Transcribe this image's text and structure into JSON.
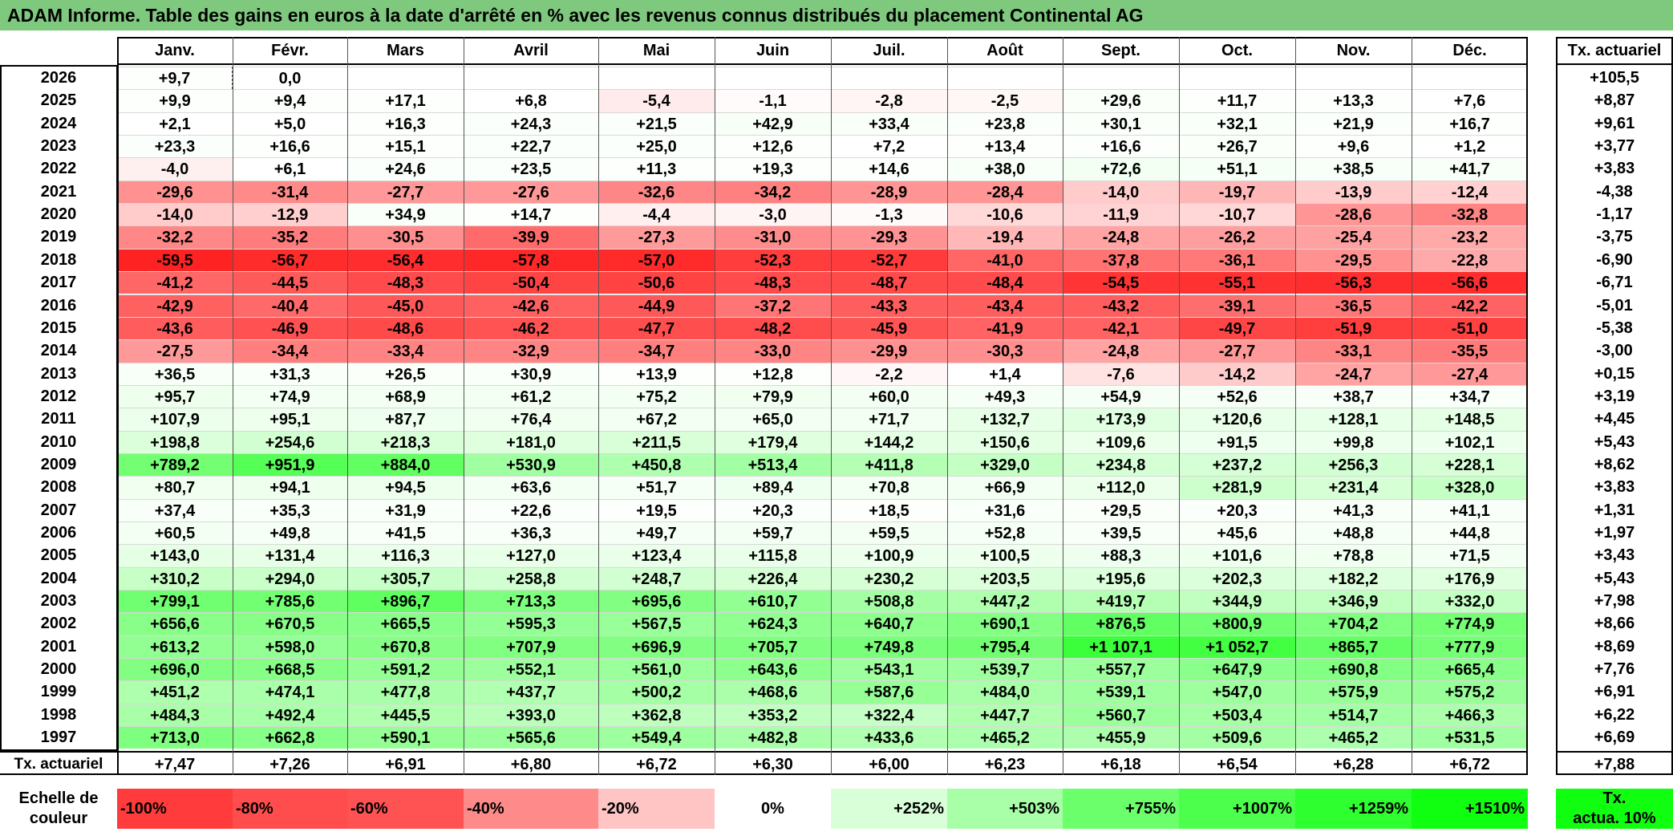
{
  "title": "ADAM Informe. Table des gains en euros à la date d'arrêté en % avec les revenus connus distribués du placement Continental AG",
  "months": [
    "Janv.",
    "Févr.",
    "Mars",
    "Avril",
    "Mai",
    "Juin",
    "Juil.",
    "Août",
    "Sept.",
    "Oct.",
    "Nov.",
    "Déc."
  ],
  "rate_header": "Tx. actuariel",
  "rows": [
    {
      "year": "2026",
      "values": [
        "+9,7",
        "0,0",
        "",
        "",
        "",
        "",
        "",
        "",
        "",
        "",
        "",
        ""
      ],
      "rate": "+105,5"
    },
    {
      "year": "2025",
      "values": [
        "+9,9",
        "+9,4",
        "+17,1",
        "+6,8",
        "-5,4",
        "-1,1",
        "-2,8",
        "-2,5",
        "+29,6",
        "+11,7",
        "+13,3",
        "+7,6"
      ],
      "rate": "+8,87"
    },
    {
      "year": "2024",
      "values": [
        "+2,1",
        "+5,0",
        "+16,3",
        "+24,3",
        "+21,5",
        "+42,9",
        "+33,4",
        "+23,8",
        "+30,1",
        "+32,1",
        "+21,9",
        "+16,7"
      ],
      "rate": "+9,61"
    },
    {
      "year": "2023",
      "values": [
        "+23,3",
        "+16,6",
        "+15,1",
        "+22,7",
        "+25,0",
        "+12,6",
        "+7,2",
        "+13,4",
        "+16,6",
        "+26,7",
        "+9,6",
        "+1,2"
      ],
      "rate": "+3,77"
    },
    {
      "year": "2022",
      "values": [
        "-4,0",
        "+6,1",
        "+24,6",
        "+23,5",
        "+11,3",
        "+19,3",
        "+14,6",
        "+38,0",
        "+72,6",
        "+51,1",
        "+38,5",
        "+41,7"
      ],
      "rate": "+3,83"
    },
    {
      "year": "2021",
      "values": [
        "-29,6",
        "-31,4",
        "-27,7",
        "-27,6",
        "-32,6",
        "-34,2",
        "-28,9",
        "-28,4",
        "-14,0",
        "-19,7",
        "-13,9",
        "-12,4"
      ],
      "rate": "-4,38"
    },
    {
      "year": "2020",
      "values": [
        "-14,0",
        "-12,9",
        "+34,9",
        "+14,7",
        "-4,4",
        "-3,0",
        "-1,3",
        "-10,6",
        "-11,9",
        "-10,7",
        "-28,6",
        "-32,8"
      ],
      "rate": "-1,17"
    },
    {
      "year": "2019",
      "values": [
        "-32,2",
        "-35,2",
        "-30,5",
        "-39,9",
        "-27,3",
        "-31,0",
        "-29,3",
        "-19,4",
        "-24,8",
        "-26,2",
        "-25,4",
        "-23,2"
      ],
      "rate": "-3,75"
    },
    {
      "year": "2018",
      "values": [
        "-59,5",
        "-56,7",
        "-56,4",
        "-57,8",
        "-57,0",
        "-52,3",
        "-52,7",
        "-41,0",
        "-37,8",
        "-36,1",
        "-29,5",
        "-22,8"
      ],
      "rate": "-6,90"
    },
    {
      "year": "2017",
      "values": [
        "-41,2",
        "-44,5",
        "-48,3",
        "-50,4",
        "-50,6",
        "-48,3",
        "-48,7",
        "-48,4",
        "-54,5",
        "-55,1",
        "-56,3",
        "-56,6"
      ],
      "rate": "-6,71"
    },
    {
      "year": "2016",
      "values": [
        "-42,9",
        "-40,4",
        "-45,0",
        "-42,6",
        "-44,9",
        "-37,2",
        "-43,3",
        "-43,4",
        "-43,2",
        "-39,1",
        "-36,5",
        "-42,2"
      ],
      "rate": "-5,01"
    },
    {
      "year": "2015",
      "values": [
        "-43,6",
        "-46,9",
        "-48,6",
        "-46,2",
        "-47,7",
        "-48,2",
        "-45,9",
        "-41,9",
        "-42,1",
        "-49,7",
        "-51,9",
        "-51,0"
      ],
      "rate": "-5,38"
    },
    {
      "year": "2014",
      "values": [
        "-27,5",
        "-34,4",
        "-33,4",
        "-32,9",
        "-34,7",
        "-33,0",
        "-29,9",
        "-30,3",
        "-24,8",
        "-27,7",
        "-33,1",
        "-35,5"
      ],
      "rate": "-3,00"
    },
    {
      "year": "2013",
      "values": [
        "+36,5",
        "+31,3",
        "+26,5",
        "+30,9",
        "+13,9",
        "+12,8",
        "-2,2",
        "+1,4",
        "-7,6",
        "-14,2",
        "-24,7",
        "-27,4"
      ],
      "rate": "+0,15"
    },
    {
      "year": "2012",
      "values": [
        "+95,7",
        "+74,9",
        "+68,9",
        "+61,2",
        "+75,2",
        "+79,9",
        "+60,0",
        "+49,3",
        "+54,9",
        "+52,6",
        "+38,7",
        "+34,7"
      ],
      "rate": "+3,19"
    },
    {
      "year": "2011",
      "values": [
        "+107,9",
        "+95,1",
        "+87,7",
        "+76,4",
        "+67,2",
        "+65,0",
        "+71,7",
        "+132,7",
        "+173,9",
        "+120,6",
        "+128,1",
        "+148,5"
      ],
      "rate": "+4,45"
    },
    {
      "year": "2010",
      "values": [
        "+198,8",
        "+254,6",
        "+218,3",
        "+181,0",
        "+211,5",
        "+179,4",
        "+144,2",
        "+150,6",
        "+109,6",
        "+91,5",
        "+99,8",
        "+102,1"
      ],
      "rate": "+5,43"
    },
    {
      "year": "2009",
      "values": [
        "+789,2",
        "+951,9",
        "+884,0",
        "+530,9",
        "+450,8",
        "+513,4",
        "+411,8",
        "+329,0",
        "+234,8",
        "+237,2",
        "+256,3",
        "+228,1"
      ],
      "rate": "+8,62"
    },
    {
      "year": "2008",
      "values": [
        "+80,7",
        "+94,1",
        "+94,5",
        "+63,6",
        "+51,7",
        "+89,4",
        "+70,8",
        "+66,9",
        "+112,0",
        "+281,9",
        "+231,4",
        "+328,0"
      ],
      "rate": "+3,83"
    },
    {
      "year": "2007",
      "values": [
        "+37,4",
        "+35,3",
        "+31,9",
        "+22,6",
        "+19,5",
        "+20,3",
        "+18,5",
        "+31,6",
        "+29,5",
        "+20,3",
        "+41,3",
        "+41,1"
      ],
      "rate": "+1,31"
    },
    {
      "year": "2006",
      "values": [
        "+60,5",
        "+49,8",
        "+41,5",
        "+36,3",
        "+49,7",
        "+59,7",
        "+59,5",
        "+52,8",
        "+39,5",
        "+45,6",
        "+48,8",
        "+44,8"
      ],
      "rate": "+1,97"
    },
    {
      "year": "2005",
      "values": [
        "+143,0",
        "+131,4",
        "+116,3",
        "+127,0",
        "+123,4",
        "+115,8",
        "+100,9",
        "+100,5",
        "+88,3",
        "+101,6",
        "+78,8",
        "+71,5"
      ],
      "rate": "+3,43"
    },
    {
      "year": "2004",
      "values": [
        "+310,2",
        "+294,0",
        "+305,7",
        "+258,8",
        "+248,7",
        "+226,4",
        "+230,2",
        "+203,5",
        "+195,6",
        "+202,3",
        "+182,2",
        "+176,9"
      ],
      "rate": "+5,43"
    },
    {
      "year": "2003",
      "values": [
        "+799,1",
        "+785,6",
        "+896,7",
        "+713,3",
        "+695,6",
        "+610,7",
        "+508,8",
        "+447,2",
        "+419,7",
        "+344,9",
        "+346,9",
        "+332,0"
      ],
      "rate": "+7,98"
    },
    {
      "year": "2002",
      "values": [
        "+656,6",
        "+670,5",
        "+665,5",
        "+595,3",
        "+567,5",
        "+624,3",
        "+640,7",
        "+690,1",
        "+876,5",
        "+800,9",
        "+704,2",
        "+774,9"
      ],
      "rate": "+8,66"
    },
    {
      "year": "2001",
      "values": [
        "+613,2",
        "+598,0",
        "+670,8",
        "+707,9",
        "+696,9",
        "+705,7",
        "+749,8",
        "+795,4",
        "+1 107,1",
        "+1 052,7",
        "+865,7",
        "+777,9"
      ],
      "rate": "+8,69"
    },
    {
      "year": "2000",
      "values": [
        "+696,0",
        "+668,5",
        "+591,2",
        "+552,1",
        "+561,0",
        "+643,6",
        "+543,1",
        "+539,7",
        "+557,7",
        "+647,9",
        "+690,8",
        "+665,4"
      ],
      "rate": "+7,76"
    },
    {
      "year": "1999",
      "values": [
        "+451,2",
        "+474,1",
        "+477,8",
        "+437,7",
        "+500,2",
        "+468,6",
        "+587,6",
        "+484,0",
        "+539,1",
        "+547,0",
        "+575,9",
        "+575,2"
      ],
      "rate": "+6,91"
    },
    {
      "year": "1998",
      "values": [
        "+484,3",
        "+492,4",
        "+445,5",
        "+393,0",
        "+362,8",
        "+353,2",
        "+322,4",
        "+447,7",
        "+560,7",
        "+503,4",
        "+514,7",
        "+466,3"
      ],
      "rate": "+6,22"
    },
    {
      "year": "1997",
      "values": [
        "+713,0",
        "+662,8",
        "+590,1",
        "+565,6",
        "+549,4",
        "+482,8",
        "+433,6",
        "+465,2",
        "+455,9",
        "+509,6",
        "+465,2",
        "+531,5"
      ],
      "rate": "+6,69"
    }
  ],
  "footer": {
    "label": "Tx. actuariel",
    "values": [
      "+7,47",
      "+7,26",
      "+6,91",
      "+6,80",
      "+6,72",
      "+6,30",
      "+6,00",
      "+6,23",
      "+6,18",
      "+6,54",
      "+6,28",
      "+6,72"
    ],
    "rate": "+7,88"
  },
  "scale": {
    "label_line1": "Echelle de",
    "label_line2": "couleur",
    "items": [
      {
        "text": "-100%",
        "color": "#ff3b3b",
        "align": "left"
      },
      {
        "text": "-80%",
        "color": "#ff4d4d",
        "align": "left"
      },
      {
        "text": "-60%",
        "color": "#ff5252",
        "align": "left"
      },
      {
        "text": "-40%",
        "color": "#ff8a8a",
        "align": "left"
      },
      {
        "text": "-20%",
        "color": "#ffc4c4",
        "align": "left"
      },
      {
        "text": "0%",
        "color": "#ffffff",
        "align": "center"
      },
      {
        "text": "+252%",
        "color": "#d9ffd9",
        "align": "right"
      },
      {
        "text": "+503%",
        "color": "#a8ffa8",
        "align": "right"
      },
      {
        "text": "+755%",
        "color": "#6cff6c",
        "align": "right"
      },
      {
        "text": "+1007%",
        "color": "#4cff4c",
        "align": "right"
      },
      {
        "text": "+1259%",
        "color": "#2eff2e",
        "align": "right"
      },
      {
        "text": "+1510%",
        "color": "#10ff10",
        "align": "right"
      }
    ],
    "rate_line1": "Tx.",
    "rate_line2": "actua. 10%",
    "rate_color": "#10ff10"
  },
  "colors": {
    "title_bg": "#7fc97f",
    "neg_extreme": "#ff2020",
    "pos_extreme": "#3aff3a"
  }
}
